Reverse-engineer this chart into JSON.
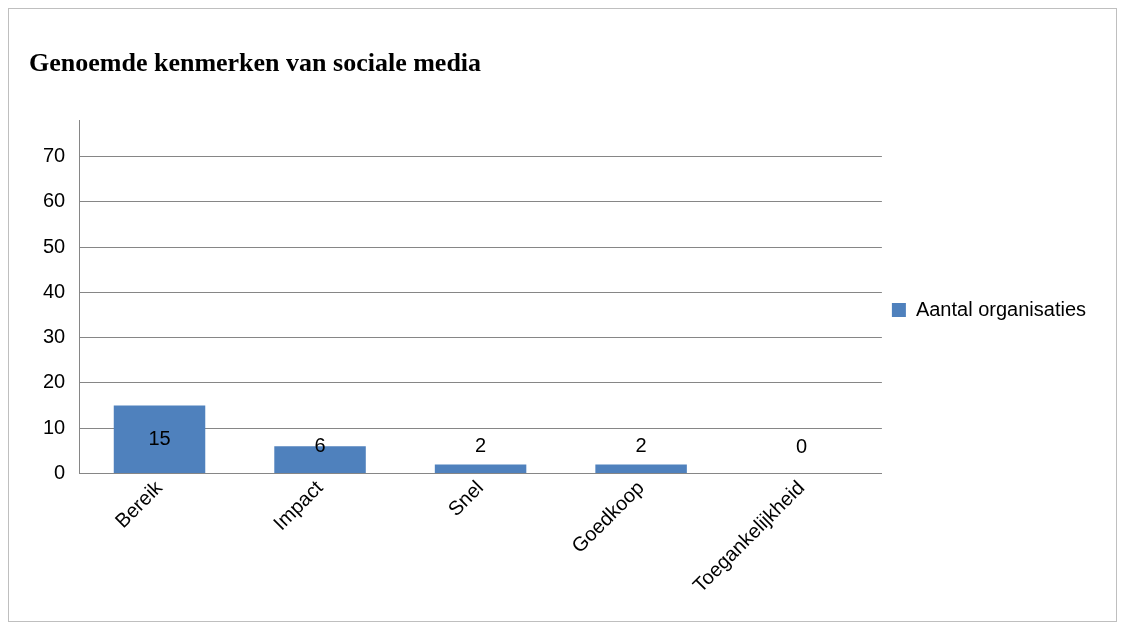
{
  "chart_data": {
    "type": "bar",
    "title": "Genoemde kenmerken van sociale media",
    "categories": [
      "Bereik",
      "Impact",
      "Snel",
      "Goedkoop",
      "Toegankelijkheid"
    ],
    "series": [
      {
        "name": "Aantal organisaties",
        "color": "#4f81bd",
        "values": [
          15,
          6,
          2,
          2,
          0
        ]
      }
    ],
    "ylim": [
      0,
      78
    ],
    "yticks": [
      0,
      10,
      20,
      30,
      40,
      50,
      60,
      70
    ],
    "grid": "y",
    "legend": "right",
    "data_labels": true
  }
}
